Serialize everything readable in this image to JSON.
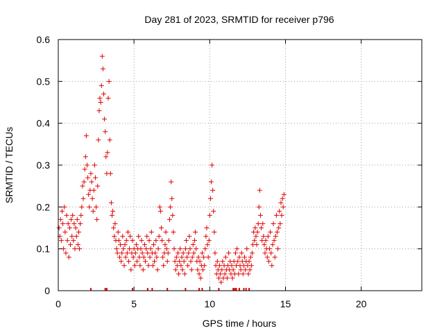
{
  "chart_data": {
    "type": "scatter",
    "title": "Day 281 of 2023, SRMTID for receiver p796",
    "xlabel": "GPS time / hours",
    "ylabel": "SRMTID / TECUs",
    "xlim": [
      0,
      24
    ],
    "ylim": [
      0,
      0.6
    ],
    "x_ticks": [
      0,
      5,
      10,
      15,
      20
    ],
    "x_tick_labels": [
      "0",
      "5",
      "10",
      "15",
      "20"
    ],
    "y_ticks": [
      0,
      0.1,
      0.2,
      0.3,
      0.4,
      0.5,
      0.6
    ],
    "y_tick_labels": [
      "0",
      "0.1",
      "0.2",
      "0.3",
      "0.4",
      "0.5",
      "0.6"
    ],
    "grid": true,
    "marker": "plus",
    "color": "#e00000",
    "series": [
      {
        "name": "SRMTID",
        "points": [
          [
            0.05,
            0.15
          ],
          [
            0.1,
            0.13
          ],
          [
            0.15,
            0.17
          ],
          [
            0.2,
            0.12
          ],
          [
            0.25,
            0.19
          ],
          [
            0.3,
            0.16
          ],
          [
            0.35,
            0.1
          ],
          [
            0.4,
            0.2
          ],
          [
            0.45,
            0.14
          ],
          [
            0.5,
            0.09
          ],
          [
            0.55,
            0.18
          ],
          [
            0.6,
            0.12
          ],
          [
            0.65,
            0.16
          ],
          [
            0.7,
            0.08
          ],
          [
            0.75,
            0.15
          ],
          [
            0.8,
            0.11
          ],
          [
            0.85,
            0.17
          ],
          [
            0.9,
            0.13
          ],
          [
            0.95,
            0.18
          ],
          [
            1.0,
            0.12
          ],
          [
            1.05,
            0.16
          ],
          [
            1.1,
            0.1
          ],
          [
            1.15,
            0.15
          ],
          [
            1.2,
            0.13
          ],
          [
            1.25,
            0.17
          ],
          [
            1.3,
            0.11
          ],
          [
            1.35,
            0.14
          ],
          [
            1.4,
            0.1
          ],
          [
            1.45,
            0.16
          ],
          [
            1.5,
            0.18
          ],
          [
            1.55,
            0.2
          ],
          [
            1.6,
            0.25
          ],
          [
            1.65,
            0.22
          ],
          [
            1.7,
            0.26
          ],
          [
            1.75,
            0.29
          ],
          [
            1.8,
            0.32
          ],
          [
            1.85,
            0.37
          ],
          [
            1.9,
            0.3
          ],
          [
            1.95,
            0.27
          ],
          [
            2.0,
            0.23
          ],
          [
            2.05,
            0.2
          ],
          [
            2.1,
            0.24
          ],
          [
            2.15,
            0.28
          ],
          [
            2.2,
            0.26
          ],
          [
            2.25,
            0.22
          ],
          [
            2.3,
            0.19
          ],
          [
            2.35,
            0.24
          ],
          [
            2.4,
            0.3
          ],
          [
            2.45,
            0.27
          ],
          [
            2.5,
            0.2
          ],
          [
            2.55,
            0.17
          ],
          [
            2.6,
            0.25
          ],
          [
            2.65,
            0.36
          ],
          [
            2.7,
            0.43
          ],
          [
            2.75,
            0.46
          ],
          [
            2.8,
            0.45
          ],
          [
            2.85,
            0.49
          ],
          [
            2.9,
            0.56
          ],
          [
            2.95,
            0.53
          ],
          [
            3.0,
            0.47
          ],
          [
            3.05,
            0.41
          ],
          [
            3.1,
            0.38
          ],
          [
            3.15,
            0.32
          ],
          [
            3.2,
            0.28
          ],
          [
            3.25,
            0.33
          ],
          [
            3.3,
            0.46
          ],
          [
            3.35,
            0.5
          ],
          [
            3.4,
            0.36
          ],
          [
            3.45,
            0.28
          ],
          [
            3.5,
            0.21
          ],
          [
            3.55,
            0.18
          ],
          [
            3.6,
            0.19
          ],
          [
            3.65,
            0.15
          ],
          [
            3.7,
            0.13
          ],
          [
            3.75,
            0.16
          ],
          [
            3.8,
            0.12
          ],
          [
            3.85,
            0.1
          ],
          [
            3.9,
            0.09
          ],
          [
            3.95,
            0.14
          ],
          [
            4.0,
            0.12
          ],
          [
            4.05,
            0.08
          ],
          [
            4.1,
            0.11
          ],
          [
            4.15,
            0.07
          ],
          [
            4.2,
            0.09
          ],
          [
            4.25,
            0.13
          ],
          [
            4.3,
            0.1
          ],
          [
            4.35,
            0.06
          ],
          [
            4.4,
            0.11
          ],
          [
            4.45,
            0.08
          ],
          [
            4.5,
            0.12
          ],
          [
            4.55,
            0.09
          ],
          [
            4.6,
            0.14
          ],
          [
            4.65,
            0.07
          ],
          [
            4.7,
            0.1
          ],
          [
            4.75,
            0.13
          ],
          [
            4.8,
            0.05
          ],
          [
            4.85,
            0.09
          ],
          [
            4.9,
            0.12
          ],
          [
            4.95,
            0.08
          ],
          [
            5.0,
            0.1
          ],
          [
            5.05,
            0.06
          ],
          [
            5.1,
            0.09
          ],
          [
            5.15,
            0.11
          ],
          [
            5.2,
            0.07
          ],
          [
            5.25,
            0.1
          ],
          [
            5.3,
            0.13
          ],
          [
            5.35,
            0.08
          ],
          [
            5.4,
            0.06
          ],
          [
            5.45,
            0.1
          ],
          [
            5.5,
            0.12
          ],
          [
            5.55,
            0.09
          ],
          [
            5.6,
            0.05
          ],
          [
            5.65,
            0.08
          ],
          [
            5.7,
            0.11
          ],
          [
            5.75,
            0.07
          ],
          [
            5.8,
            0.1
          ],
          [
            5.85,
            0.13
          ],
          [
            5.9,
            0.09
          ],
          [
            5.95,
            0.06
          ],
          [
            6.0,
            0.12
          ],
          [
            6.05,
            0.08
          ],
          [
            6.1,
            0.1
          ],
          [
            6.15,
            0.14
          ],
          [
            6.2,
            0.09
          ],
          [
            6.25,
            0.06
          ],
          [
            6.3,
            0.11
          ],
          [
            6.35,
            0.07
          ],
          [
            6.4,
            0.09
          ],
          [
            6.45,
            0.12
          ],
          [
            6.5,
            0.08
          ],
          [
            6.55,
            0.05
          ],
          [
            6.6,
            0.1
          ],
          [
            6.65,
            0.13
          ],
          [
            6.7,
            0.2
          ],
          [
            6.75,
            0.19
          ],
          [
            6.8,
            0.15
          ],
          [
            6.85,
            0.12
          ],
          [
            6.9,
            0.08
          ],
          [
            6.95,
            0.06
          ],
          [
            7.0,
            0.09
          ],
          [
            7.05,
            0.11
          ],
          [
            7.1,
            0.14
          ],
          [
            7.15,
            0.1
          ],
          [
            7.2,
            0.07
          ],
          [
            7.25,
            0.09
          ],
          [
            7.3,
            0.12
          ],
          [
            7.35,
            0.17
          ],
          [
            7.4,
            0.2
          ],
          [
            7.45,
            0.26
          ],
          [
            7.5,
            0.22
          ],
          [
            7.55,
            0.18
          ],
          [
            7.6,
            0.14
          ],
          [
            7.65,
            0.1
          ],
          [
            7.7,
            0.07
          ],
          [
            7.75,
            0.05
          ],
          [
            7.8,
            0.08
          ],
          [
            7.85,
            0.06
          ],
          [
            7.9,
            0.09
          ],
          [
            7.95,
            0.04
          ],
          [
            8.0,
            0.07
          ],
          [
            8.05,
            0.1
          ],
          [
            8.1,
            0.06
          ],
          [
            8.15,
            0.08
          ],
          [
            8.2,
            0.05
          ],
          [
            8.25,
            0.09
          ],
          [
            8.3,
            0.07
          ],
          [
            8.35,
            0.04
          ],
          [
            8.4,
            0.1
          ],
          [
            8.45,
            0.12
          ],
          [
            8.5,
            0.08
          ],
          [
            8.55,
            0.06
          ],
          [
            8.6,
            0.09
          ],
          [
            8.65,
            0.13
          ],
          [
            8.7,
            0.1
          ],
          [
            8.75,
            0.07
          ],
          [
            8.8,
            0.05
          ],
          [
            8.85,
            0.08
          ],
          [
            8.9,
            0.11
          ],
          [
            8.95,
            0.09
          ],
          [
            9.0,
            0.12
          ],
          [
            9.05,
            0.14
          ],
          [
            9.1,
            0.1
          ],
          [
            9.15,
            0.07
          ],
          [
            9.2,
            0.05
          ],
          [
            9.25,
            0.08
          ],
          [
            9.3,
            0.04
          ],
          [
            9.35,
            0.07
          ],
          [
            9.4,
            0.03
          ],
          [
            9.45,
            0.06
          ],
          [
            9.5,
            0.09
          ],
          [
            9.55,
            0.05
          ],
          [
            9.6,
            0.08
          ],
          [
            9.65,
            0.06
          ],
          [
            9.7,
            0.1
          ],
          [
            9.75,
            0.13
          ],
          [
            9.8,
            0.15
          ],
          [
            9.85,
            0.11
          ],
          [
            9.9,
            0.08
          ],
          [
            9.95,
            0.12
          ],
          [
            10.0,
            0.18
          ],
          [
            10.05,
            0.22
          ],
          [
            10.1,
            0.26
          ],
          [
            10.15,
            0.3
          ],
          [
            10.2,
            0.24
          ],
          [
            10.25,
            0.19
          ],
          [
            10.3,
            0.14
          ],
          [
            10.35,
            0.09
          ],
          [
            10.4,
            0.06
          ],
          [
            10.45,
            0.04
          ],
          [
            10.5,
            0.07
          ],
          [
            10.55,
            0.05
          ],
          [
            10.6,
            0.03
          ],
          [
            10.65,
            0.06
          ],
          [
            10.7,
            0.04
          ],
          [
            10.75,
            0.02
          ],
          [
            10.8,
            0.05
          ],
          [
            10.85,
            0.07
          ],
          [
            10.9,
            0.03
          ],
          [
            10.95,
            0.06
          ],
          [
            11.0,
            0.04
          ],
          [
            11.05,
            0.08
          ],
          [
            11.1,
            0.05
          ],
          [
            11.15,
            0.03
          ],
          [
            11.2,
            0.06
          ],
          [
            11.25,
            0.09
          ],
          [
            11.3,
            0.05
          ],
          [
            11.35,
            0.07
          ],
          [
            11.4,
            0.04
          ],
          [
            11.45,
            0.06
          ],
          [
            11.5,
            0.03
          ],
          [
            11.55,
            0.05
          ],
          [
            11.6,
            0.07
          ],
          [
            11.65,
            0.04
          ],
          [
            11.7,
            0.09
          ],
          [
            11.75,
            0.06
          ],
          [
            11.8,
            0.1
          ],
          [
            11.85,
            0.07
          ],
          [
            11.9,
            0.04
          ],
          [
            11.95,
            0.08
          ],
          [
            12.0,
            0.06
          ],
          [
            12.05,
            0.05
          ],
          [
            12.1,
            0.09
          ],
          [
            12.15,
            0.07
          ],
          [
            12.2,
            0.04
          ],
          [
            12.25,
            0.06
          ],
          [
            12.3,
            0.08
          ],
          [
            12.35,
            0.05
          ],
          [
            12.4,
            0.07
          ],
          [
            12.45,
            0.1
          ],
          [
            12.5,
            0.06
          ],
          [
            12.55,
            0.04
          ],
          [
            12.6,
            0.07
          ],
          [
            12.65,
            0.05
          ],
          [
            12.7,
            0.08
          ],
          [
            12.75,
            0.06
          ],
          [
            12.8,
            0.09
          ],
          [
            12.85,
            0.11
          ],
          [
            12.9,
            0.14
          ],
          [
            12.95,
            0.12
          ],
          [
            13.0,
            0.15
          ],
          [
            13.05,
            0.13
          ],
          [
            13.1,
            0.11
          ],
          [
            13.15,
            0.14
          ],
          [
            13.2,
            0.16
          ],
          [
            13.25,
            0.2
          ],
          [
            13.3,
            0.24
          ],
          [
            13.35,
            0.18
          ],
          [
            13.4,
            0.15
          ],
          [
            13.45,
            0.12
          ],
          [
            13.5,
            0.16
          ],
          [
            13.55,
            0.13
          ],
          [
            13.6,
            0.11
          ],
          [
            13.65,
            0.09
          ],
          [
            13.7,
            0.12
          ],
          [
            13.75,
            0.1
          ],
          [
            13.8,
            0.08
          ],
          [
            13.85,
            0.13
          ],
          [
            13.9,
            0.07
          ],
          [
            13.95,
            0.1
          ],
          [
            14.0,
            0.14
          ],
          [
            14.05,
            0.09
          ],
          [
            14.1,
            0.06
          ],
          [
            14.15,
            0.11
          ],
          [
            14.2,
            0.16
          ],
          [
            14.25,
            0.12
          ],
          [
            14.3,
            0.08
          ],
          [
            14.35,
            0.13
          ],
          [
            14.4,
            0.18
          ],
          [
            14.45,
            0.14
          ],
          [
            14.5,
            0.1
          ],
          [
            14.55,
            0.15
          ],
          [
            14.6,
            0.19
          ],
          [
            14.65,
            0.16
          ],
          [
            14.7,
            0.21
          ],
          [
            14.75,
            0.18
          ],
          [
            14.8,
            0.22
          ],
          [
            14.85,
            0.2
          ],
          [
            14.9,
            0.23
          ]
        ]
      }
    ],
    "rug_x": [
      2.15,
      3.1,
      3.2,
      4.9,
      5.9,
      6.2,
      7.2,
      8.4,
      9.3,
      9.5,
      10.6,
      11.55,
      11.65,
      11.75,
      11.95,
      12.25,
      12.4,
      12.6
    ]
  }
}
